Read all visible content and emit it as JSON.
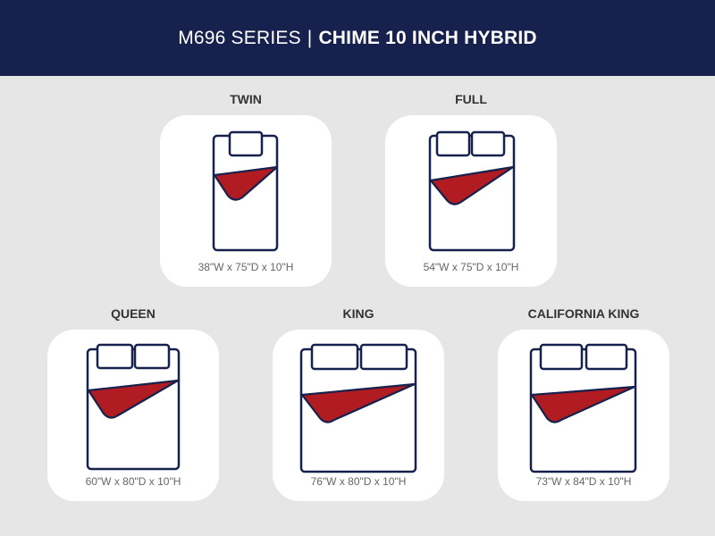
{
  "header": {
    "series": "M696 SERIES",
    "separator": "|",
    "model": "CHIME 10 INCH HYBRID"
  },
  "colors": {
    "header_bg": "#17214d",
    "bed_outline": "#17214d",
    "blanket": "#b01c22",
    "background": "#e5e6e5"
  },
  "sizes": [
    {
      "name": "TWIN",
      "dimensions": "38\"W x 75\"D x 10\"H",
      "icon": "twin-bed-icon"
    },
    {
      "name": "FULL",
      "dimensions": "54\"W x 75\"D x 10\"H",
      "icon": "full-bed-icon"
    },
    {
      "name": "QUEEN",
      "dimensions": "60\"W x 80\"D x 10\"H",
      "icon": "queen-bed-icon"
    },
    {
      "name": "KING",
      "dimensions": "76\"W x 80\"D x 10\"H",
      "icon": "king-bed-icon"
    },
    {
      "name": "CALIFORNIA KING",
      "dimensions": "73\"W x 84\"D x 10\"H",
      "icon": "california-king-bed-icon"
    }
  ]
}
